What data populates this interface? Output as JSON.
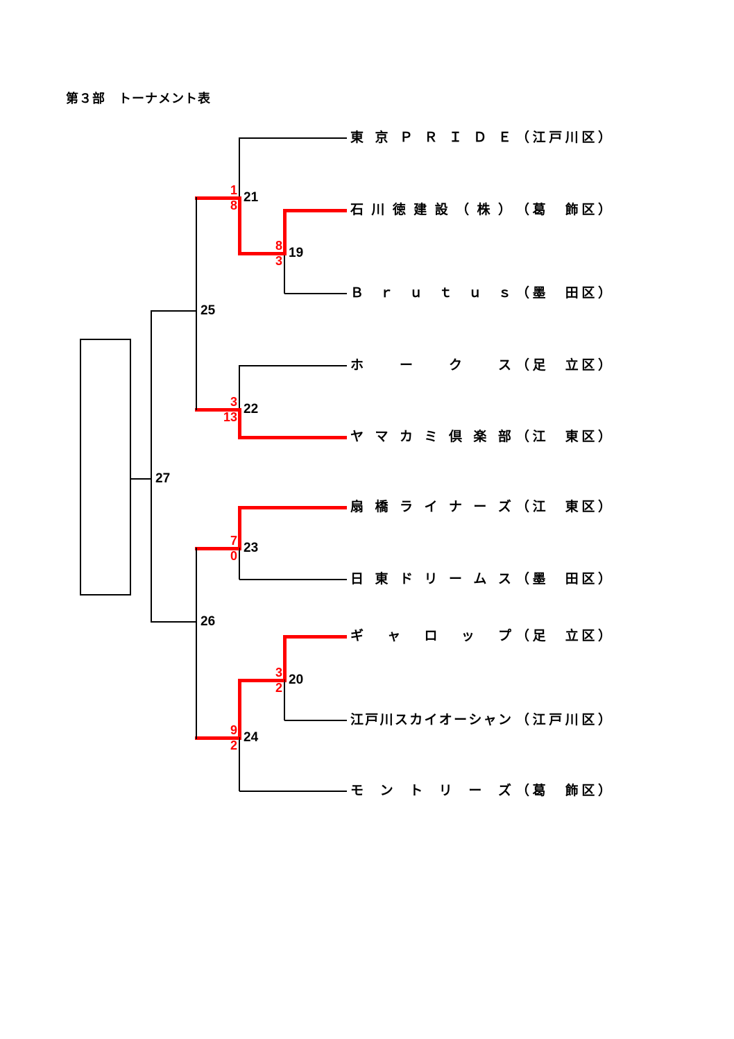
{
  "title": "第３部　トーナメント表",
  "colors": {
    "background": "#FFFFFF",
    "line": "#000000",
    "accent": "#FF0000"
  },
  "bracket": {
    "teams": [
      {
        "name": "東京ＰＲＩＤＥ",
        "district": "（江戸川区）",
        "line_color": "black"
      },
      {
        "name": "石川徳建設（株）",
        "district": "（葛　飾区）",
        "line_color": "red"
      },
      {
        "name": "Ｂｒｕｔｕｓ",
        "district": "（墨　田区）",
        "line_color": "black"
      },
      {
        "name": "ホークス",
        "district": "（足　立区）",
        "line_color": "black"
      },
      {
        "name": "ヤマカミ倶楽部",
        "district": "（江　東区）",
        "line_color": "red"
      },
      {
        "name": "扇橋ライナーズ",
        "district": "（江　東区）",
        "line_color": "red"
      },
      {
        "name": "日東ドリームス",
        "district": "（墨　田区）",
        "line_color": "black"
      },
      {
        "name": "ギャロップ",
        "district": "（足　立区）",
        "line_color": "red"
      },
      {
        "name": "江戸川スカイオーシャン",
        "district": "（江戸川区）",
        "line_color": "black"
      },
      {
        "name": "モントリーズ",
        "district": "（葛　飾区）",
        "line_color": "black"
      }
    ],
    "matches": [
      {
        "label": "19",
        "score_top": "8",
        "score_bottom": "3",
        "winner": "top"
      },
      {
        "label": "20",
        "score_top": "3",
        "score_bottom": "2",
        "winner": "top"
      },
      {
        "label": "21",
        "score_top": "1",
        "score_bottom": "8",
        "winner": "bottom"
      },
      {
        "label": "22",
        "score_top": "3",
        "score_bottom": "13",
        "winner": "bottom"
      },
      {
        "label": "23",
        "score_top": "7",
        "score_bottom": "0",
        "winner": "top"
      },
      {
        "label": "24",
        "score_top": "9",
        "score_bottom": "2",
        "winner": "top"
      },
      {
        "label": "25"
      },
      {
        "label": "26"
      },
      {
        "label": "27"
      }
    ]
  }
}
